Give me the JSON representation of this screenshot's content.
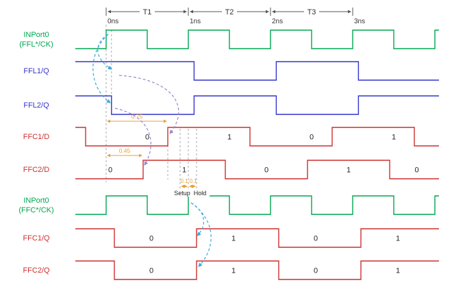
{
  "palette": {
    "green": "#00a550",
    "blue": "#3333cc",
    "red": "#cc2f2f",
    "orange": "#e8a13c",
    "cyan": "#3aa8dc",
    "purple": "#9b86cc",
    "grid": "#aaaaaa",
    "axis": "#555555",
    "text": "#333333",
    "value": "#222222"
  },
  "axis": {
    "ticks": [
      {
        "t": 0,
        "label": "0ns"
      },
      {
        "t": 1,
        "label": "1ns"
      },
      {
        "t": 2,
        "label": "2ns"
      },
      {
        "t": 3,
        "label": "3ns"
      }
    ],
    "periods": [
      {
        "label": "T1",
        "from": 0,
        "to": 1
      },
      {
        "label": "T2",
        "from": 1,
        "to": 2
      },
      {
        "label": "T3",
        "from": 2,
        "to": 3
      }
    ]
  },
  "signals": [
    {
      "id": "ffl-ck",
      "name": "INPort0 (FFL*/CK)",
      "label_lines": [
        "INPort0",
        "(FFL*/CK)"
      ],
      "color": "green",
      "wave": [
        [
          -0.375,
          0
        ],
        [
          0,
          1
        ],
        [
          0.5,
          0
        ],
        [
          1,
          1
        ],
        [
          1.5,
          0
        ],
        [
          2,
          1
        ],
        [
          2.5,
          0
        ],
        [
          3,
          1
        ],
        [
          3.5,
          0
        ],
        [
          4,
          1
        ]
      ],
      "values": []
    },
    {
      "id": "ffl1-q",
      "name": "FFL1/Q",
      "label_lines": [
        "FFL1/Q"
      ],
      "color": "blue",
      "wave": [
        [
          -0.375,
          1
        ],
        [
          1.07,
          0
        ],
        [
          2.07,
          1
        ],
        [
          3.07,
          0
        ]
      ],
      "values": []
    },
    {
      "id": "ffl2-q",
      "name": "FFL2/Q",
      "label_lines": [
        "FFL2/Q"
      ],
      "color": "blue",
      "wave": [
        [
          -0.375,
          1
        ],
        [
          0.065,
          0
        ],
        [
          1.07,
          1
        ],
        [
          2.07,
          0
        ],
        [
          3.07,
          1
        ]
      ],
      "values": []
    },
    {
      "id": "ffc1-d",
      "name": "FFC1/D",
      "label_lines": [
        "FFC1/D"
      ],
      "color": "red",
      "wave": [
        [
          -0.375,
          1
        ],
        [
          -0.25,
          0
        ],
        [
          0.75,
          1
        ],
        [
          1.75,
          0
        ],
        [
          2.75,
          1
        ],
        [
          3.75,
          0
        ]
      ],
      "values": [
        {
          "t": 0.5,
          "v": "0"
        },
        {
          "t": 1.5,
          "v": "1"
        },
        {
          "t": 2.5,
          "v": "0"
        },
        {
          "t": 3.5,
          "v": "1"
        }
      ]
    },
    {
      "id": "ffc2-d",
      "name": "FFC2/D",
      "label_lines": [
        "FFC2/D"
      ],
      "color": "red",
      "wave": [
        [
          -0.375,
          0
        ],
        [
          0.45,
          1
        ],
        [
          1.45,
          0
        ],
        [
          2.45,
          1
        ],
        [
          3.45,
          0
        ]
      ],
      "values": [
        {
          "t": 0.05,
          "v": "0"
        },
        {
          "t": 0.95,
          "v": "1"
        },
        {
          "t": 1.95,
          "v": "0"
        },
        {
          "t": 2.95,
          "v": "1"
        },
        {
          "t": 3.78,
          "v": "0"
        }
      ]
    },
    {
      "id": "ffc-ck",
      "name": "INPort0 (FFC*/CK)",
      "label_lines": [
        "INPort0",
        "(FFC*/CK)"
      ],
      "color": "green",
      "wave": [
        [
          -0.375,
          0
        ],
        [
          0,
          1
        ],
        [
          0.5,
          0
        ],
        [
          1,
          1
        ],
        [
          1.5,
          0
        ],
        [
          2,
          1
        ],
        [
          2.5,
          0
        ],
        [
          3,
          1
        ],
        [
          3.5,
          0
        ],
        [
          4,
          1
        ]
      ],
      "values": []
    },
    {
      "id": "ffc1-q",
      "name": "FFC1/Q",
      "label_lines": [
        "FFC1/Q"
      ],
      "color": "red",
      "wave": [
        [
          -0.375,
          1
        ],
        [
          0.1,
          0
        ],
        [
          1.1,
          1
        ],
        [
          2.1,
          0
        ],
        [
          3.1,
          1
        ]
      ],
      "values": [
        {
          "t": 0.55,
          "v": "0"
        },
        {
          "t": 1.55,
          "v": "1"
        },
        {
          "t": 2.55,
          "v": "0"
        },
        {
          "t": 3.55,
          "v": "1"
        }
      ]
    },
    {
      "id": "ffc2-q",
      "name": "FFC2/Q",
      "label_lines": [
        "FFC2/Q"
      ],
      "color": "red",
      "wave": [
        [
          -0.375,
          1
        ],
        [
          0.1,
          0
        ],
        [
          1.1,
          1
        ],
        [
          2.1,
          0
        ],
        [
          3.1,
          1
        ]
      ],
      "values": [
        {
          "t": 0.55,
          "v": "0"
        },
        {
          "t": 1.55,
          "v": "1"
        },
        {
          "t": 2.55,
          "v": "0"
        },
        {
          "t": 3.55,
          "v": "1"
        }
      ]
    }
  ],
  "annotations": {
    "delays": [
      {
        "label": "0.75",
        "from_t": 0,
        "to_t": 0.75
      },
      {
        "label": "0.45",
        "from_t": 0,
        "to_t": 0.45
      }
    ],
    "setup": {
      "label": "Setup",
      "width_label": "0.1",
      "from_t": 0.9,
      "to_t": 1.0
    },
    "hold": {
      "label": "Hold",
      "width_label": "0.1",
      "from_t": 1.0,
      "to_t": 1.1
    }
  }
}
